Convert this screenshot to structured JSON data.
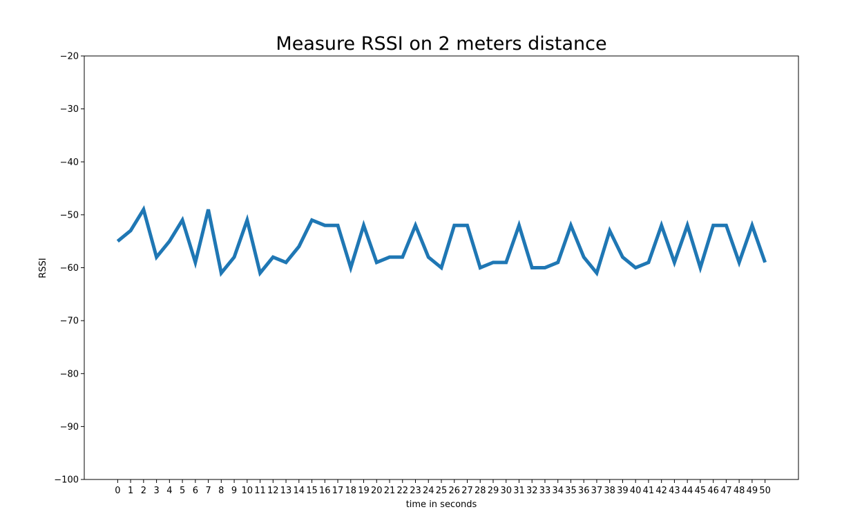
{
  "chart_data": {
    "type": "line",
    "title": "Measure RSSI on 2 meters distance",
    "xlabel": "time in seconds",
    "ylabel": "RSSI",
    "ylim": [
      -100,
      -20
    ],
    "yticks": [
      -20,
      -30,
      -40,
      -50,
      -60,
      -70,
      -80,
      -90,
      -100
    ],
    "grid": false,
    "series": [
      {
        "color": "#1f77b4",
        "x": [
          0,
          1,
          2,
          3,
          4,
          5,
          6,
          7,
          8,
          9,
          10,
          11,
          12,
          13,
          14,
          15,
          16,
          17,
          18,
          19,
          20,
          21,
          22,
          23,
          24,
          25,
          26,
          27,
          28,
          29,
          30,
          31,
          32,
          33,
          34,
          35,
          36,
          37,
          38,
          39,
          40,
          41,
          42,
          43,
          44,
          45,
          46,
          47,
          48,
          49,
          50
        ],
        "values": [
          -55,
          -53,
          -49,
          -58,
          -55,
          -51,
          -59,
          -49,
          -61,
          -58,
          -51,
          -61,
          -58,
          -59,
          -56,
          -51,
          -52,
          -52,
          -60,
          -52,
          -59,
          -58,
          -58,
          -52,
          -58,
          -60,
          -52,
          -52,
          -60,
          -59,
          -59,
          -52,
          -60,
          -60,
          -59,
          -52,
          -58,
          -61,
          -53,
          -58,
          -60,
          -59,
          -52,
          -59,
          -52,
          -60,
          -52,
          -52,
          -59,
          -52,
          -59
        ]
      }
    ]
  }
}
